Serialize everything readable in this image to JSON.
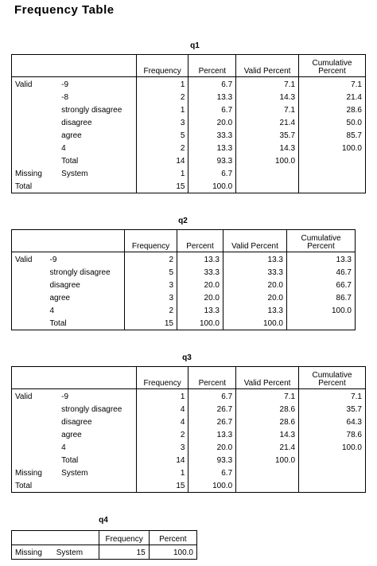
{
  "page": {
    "title": "Frequency Table"
  },
  "headers": {
    "frequency": "Frequency",
    "percent": "Percent",
    "valid_percent": "Valid Percent",
    "cumulative_l1": "Cumulative",
    "cumulative_l2": "Percent"
  },
  "q1": {
    "title": "q1",
    "rows": [
      [
        "Valid",
        "-9",
        "1",
        "6.7",
        "7.1",
        "7.1"
      ],
      [
        "",
        "-8",
        "2",
        "13.3",
        "14.3",
        "21.4"
      ],
      [
        "",
        "strongly disagree",
        "1",
        "6.7",
        "7.1",
        "28.6"
      ],
      [
        "",
        "disagree",
        "3",
        "20.0",
        "21.4",
        "50.0"
      ],
      [
        "",
        "agree",
        "5",
        "33.3",
        "35.7",
        "85.7"
      ],
      [
        "",
        "4",
        "2",
        "13.3",
        "14.3",
        "100.0"
      ],
      [
        "",
        "Total",
        "14",
        "93.3",
        "100.0",
        ""
      ],
      [
        "Missing",
        "System",
        "1",
        "6.7",
        "",
        ""
      ],
      [
        "Total",
        "",
        "15",
        "100.0",
        "",
        ""
      ]
    ]
  },
  "q2": {
    "title": "q2",
    "rows": [
      [
        "Valid",
        "-9",
        "2",
        "13.3",
        "13.3",
        "13.3"
      ],
      [
        "",
        "strongly disagree",
        "5",
        "33.3",
        "33.3",
        "46.7"
      ],
      [
        "",
        "disagree",
        "3",
        "20.0",
        "20.0",
        "66.7"
      ],
      [
        "",
        "agree",
        "3",
        "20.0",
        "20.0",
        "86.7"
      ],
      [
        "",
        "4",
        "2",
        "13.3",
        "13.3",
        "100.0"
      ],
      [
        "",
        "Total",
        "15",
        "100.0",
        "100.0",
        ""
      ]
    ]
  },
  "q3": {
    "title": "q3",
    "rows": [
      [
        "Valid",
        "-9",
        "1",
        "6.7",
        "7.1",
        "7.1"
      ],
      [
        "",
        "strongly disagree",
        "4",
        "26.7",
        "28.6",
        "35.7"
      ],
      [
        "",
        "disagree",
        "4",
        "26.7",
        "28.6",
        "64.3"
      ],
      [
        "",
        "agree",
        "2",
        "13.3",
        "14.3",
        "78.6"
      ],
      [
        "",
        "4",
        "3",
        "20.0",
        "21.4",
        "100.0"
      ],
      [
        "",
        "Total",
        "14",
        "93.3",
        "100.0",
        ""
      ],
      [
        "Missing",
        "System",
        "1",
        "6.7",
        "",
        ""
      ],
      [
        "Total",
        "",
        "15",
        "100.0",
        "",
        ""
      ]
    ]
  },
  "q4": {
    "title": "q4",
    "rows": [
      [
        "Missing",
        "System",
        "15",
        "100.0"
      ]
    ]
  }
}
